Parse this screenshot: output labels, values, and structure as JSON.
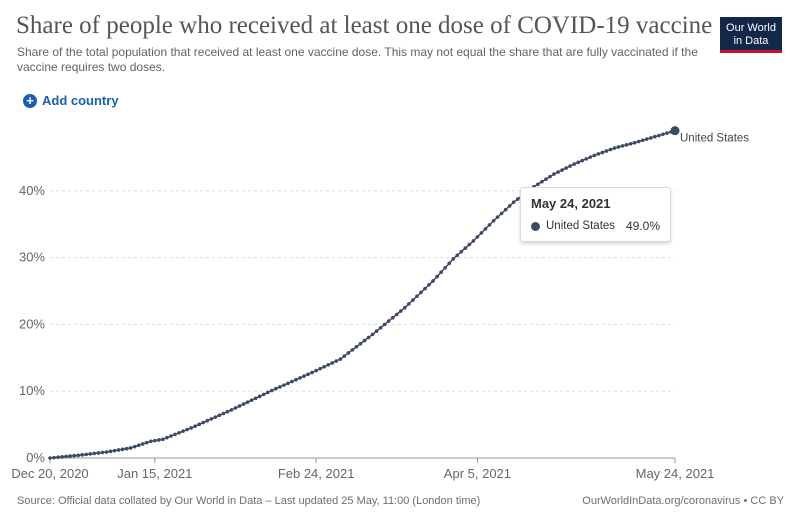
{
  "header": {
    "title": "Share of people who received at least one dose of COVID-19 vaccine",
    "subtitle": "Share of the total population that received at least one vaccine dose. This may not equal the share that are fully vaccinated if the vaccine requires two doses.",
    "logo_line1": "Our World",
    "logo_line2": "in Data",
    "add_country_label": "Add country"
  },
  "tooltip": {
    "date": "May 24, 2021",
    "series": "United States",
    "value": "49.0%"
  },
  "footer": {
    "source": "Source: Official data collated by Our World in Data – Last updated 25 May, 11:00 (London time)",
    "link": "OurWorldInData.org/coronavirus • CC BY"
  },
  "colors": {
    "series": "#3c4a66",
    "accent": "#1a5fb4",
    "brand": "#132849"
  },
  "chart_data": {
    "type": "line",
    "title": "Share of people who received at least one dose of COVID-19 vaccine",
    "xlabel": "",
    "ylabel": "",
    "ylim": [
      0,
      50
    ],
    "x_range_days": [
      0,
      155
    ],
    "y_ticks": [
      0,
      10,
      20,
      30,
      40
    ],
    "y_tick_labels": [
      "0%",
      "10%",
      "20%",
      "30%",
      "40%"
    ],
    "x_ticks": [
      0,
      26,
      66,
      106,
      155
    ],
    "x_tick_labels": [
      "Dec 20, 2020",
      "Jan 15, 2021",
      "Feb 24, 2021",
      "Apr 5, 2021",
      "May 24, 2021"
    ],
    "series": [
      {
        "name": "United States",
        "end_label": "United States",
        "anchors": [
          [
            0,
            0.0
          ],
          [
            7,
            0.4
          ],
          [
            14,
            0.9
          ],
          [
            20,
            1.5
          ],
          [
            25,
            2.5
          ],
          [
            28,
            2.8
          ],
          [
            35,
            4.5
          ],
          [
            45,
            7.2
          ],
          [
            55,
            10.1
          ],
          [
            65,
            12.8
          ],
          [
            72,
            14.8
          ],
          [
            80,
            18.5
          ],
          [
            88,
            22.5
          ],
          [
            95,
            26.5
          ],
          [
            100,
            29.8
          ],
          [
            105,
            32.5
          ],
          [
            110,
            35.5
          ],
          [
            115,
            38.3
          ],
          [
            120,
            40.6
          ],
          [
            125,
            42.5
          ],
          [
            130,
            44.0
          ],
          [
            135,
            45.3
          ],
          [
            140,
            46.4
          ],
          [
            145,
            47.2
          ],
          [
            150,
            48.1
          ],
          [
            155,
            49.0
          ]
        ]
      }
    ]
  }
}
